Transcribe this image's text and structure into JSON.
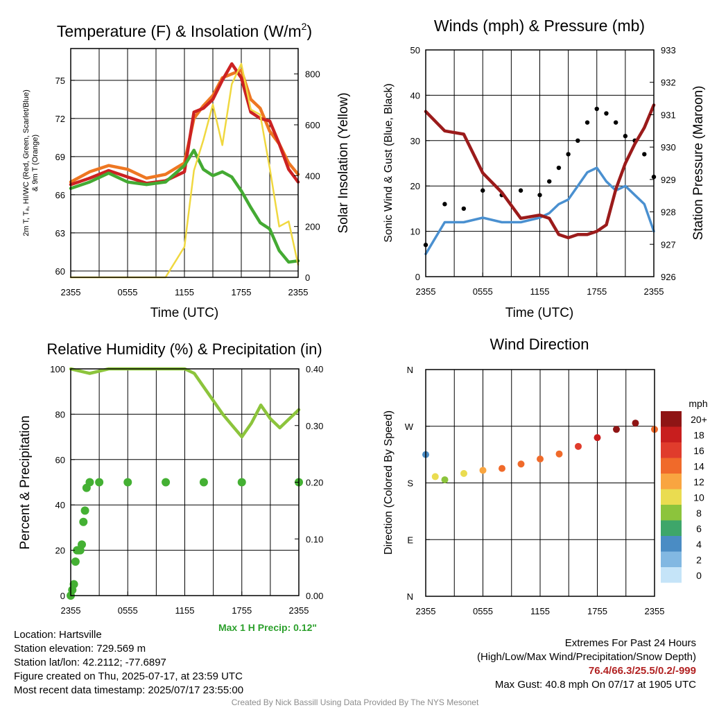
{
  "page": {
    "credit": "Created By Nick Bassill Using Data Provided By The NYS Mesonet"
  },
  "time_ticks": [
    "2355",
    "0555",
    "1155",
    "1755",
    "2355"
  ],
  "chart_data": [
    {
      "id": "temperature",
      "type": "line",
      "title": "Temperature (F) & Insolation (W/m²)",
      "title_main": "Temperature (F) & Insolation (W/m",
      "title_sup": "2",
      "title_close": ")",
      "xlabel": "Time (UTC)",
      "ylabel": "2m T, Tₐ, HI/WC (Red, Green, Scarlet/Blue) & 9m T (Orange)",
      "ylabel_line1": "2m T, Tₐ, HI/WC (Red, Green, Scarlet/Blue)",
      "ylabel_line2": "& 9m T (Orange)",
      "y2label": "Solar Insolation (Yellow)",
      "x": [
        "2355",
        "0155",
        "0355",
        "0555",
        "0755",
        "0955",
        "1155",
        "1255",
        "1355",
        "1455",
        "1555",
        "1655",
        "1755",
        "1855",
        "1955",
        "2055",
        "2155",
        "2255",
        "2355"
      ],
      "ylim": [
        59.5,
        77.5
      ],
      "yticks": [
        60,
        63,
        66,
        69,
        72,
        75
      ],
      "y2lim": [
        0,
        900
      ],
      "y2ticks": [
        0,
        200,
        400,
        600,
        800
      ],
      "grid": true,
      "series": [
        {
          "color": "#ee7722",
          "values": [
            67.0,
            67.8,
            68.3,
            68.0,
            67.3,
            67.6,
            68.5,
            72.0,
            73.0,
            73.8,
            75.2,
            75.5,
            75.8,
            73.5,
            72.8,
            71.0,
            70.0,
            68.5,
            67.6
          ]
        },
        {
          "color": "#cc2222",
          "values": [
            66.8,
            67.3,
            67.9,
            67.4,
            66.9,
            67.1,
            67.8,
            72.5,
            72.8,
            73.5,
            75.0,
            76.3,
            75.2,
            72.5,
            72.0,
            71.8,
            70.0,
            68.0,
            67.0
          ]
        },
        {
          "color": "#44aa33",
          "values": [
            66.5,
            67.0,
            67.7,
            67.0,
            66.8,
            67.0,
            68.3,
            69.5,
            68.0,
            67.5,
            67.8,
            67.4,
            66.3,
            65.0,
            63.8,
            63.3,
            61.6,
            60.7,
            60.8
          ]
        },
        {
          "color": "#f0d840",
          "axis": "right",
          "values": [
            0,
            0,
            0,
            0,
            0,
            0,
            120,
            420,
            540,
            680,
            520,
            760,
            840,
            660,
            640,
            430,
            200,
            220,
            50
          ]
        }
      ]
    },
    {
      "id": "winds",
      "type": "line",
      "title": "Winds (mph) & Pressure (mb)",
      "xlabel": "Time (UTC)",
      "ylabel": "Sonic Wind & Gust (Blue, Black)",
      "y2label": "Station Pressure (Maroon)",
      "x": [
        "2355",
        "0155",
        "0355",
        "0555",
        "0755",
        "0955",
        "1155",
        "1255",
        "1355",
        "1455",
        "1555",
        "1655",
        "1755",
        "1855",
        "1955",
        "2055",
        "2155",
        "2255",
        "2355"
      ],
      "ylim": [
        0,
        50
      ],
      "yticks": [
        0,
        10,
        20,
        30,
        40,
        50
      ],
      "y2lim": [
        926,
        933
      ],
      "y2ticks": [
        926,
        927,
        928,
        929,
        930,
        931,
        932,
        933
      ],
      "grid": true,
      "series": [
        {
          "color": "#4a90d0",
          "values": [
            5,
            12,
            12,
            13,
            12,
            12,
            13,
            14,
            16,
            17,
            20,
            23,
            24,
            21,
            19,
            20,
            18,
            16,
            10
          ]
        },
        {
          "color": "#000000",
          "marker": "dot",
          "values": [
            7,
            16,
            15,
            19,
            18,
            19,
            18,
            21,
            24,
            27,
            30,
            34,
            37,
            36,
            34,
            31,
            30,
            27,
            22
          ]
        },
        {
          "color": "#9b1b1b",
          "axis": "right",
          "values": [
            931.1,
            930.5,
            930.4,
            929.2,
            928.6,
            927.8,
            927.9,
            927.8,
            927.3,
            927.2,
            927.3,
            927.3,
            927.4,
            927.6,
            928.7,
            929.5,
            930.1,
            930.6,
            931.3
          ]
        }
      ]
    },
    {
      "id": "humidity",
      "type": "line",
      "title": "Relative Humidity (%) & Precipitation (in)",
      "xlabel": "",
      "ylabel": "Percent & Precipitation",
      "x": [
        "2355",
        "0155",
        "0355",
        "0555",
        "0755",
        "0955",
        "1155",
        "1255",
        "1355",
        "1455",
        "1555",
        "1655",
        "1755",
        "1855",
        "1955",
        "2055",
        "2155",
        "2255",
        "2355"
      ],
      "ylim": [
        0,
        100
      ],
      "yticks": [
        0,
        20,
        40,
        60,
        80,
        100
      ],
      "y2lim": [
        0,
        0.4
      ],
      "y2ticks": [
        "0.00",
        "0.10",
        "0.20",
        "0.30",
        "0.40"
      ],
      "grid": true,
      "annotation": "Max 1 H Precip: 0.12\"",
      "series": [
        {
          "color": "#8cc43c",
          "values": [
            100,
            98,
            100,
            100,
            100,
            100,
            100,
            98,
            92,
            86,
            80,
            75,
            70,
            76,
            84,
            78,
            74,
            78,
            82
          ]
        }
      ],
      "precip_points": {
        "color": "#44b033",
        "x": [
          "2355",
          "0005",
          "0015",
          "0025",
          "0035",
          "0045",
          "0055",
          "0105",
          "0115",
          "0125",
          "0135",
          "0155",
          "0255",
          "0555",
          "0955",
          "1355",
          "1755",
          "2355"
        ],
        "values": [
          0,
          0.01,
          0.02,
          0.06,
          0.08,
          0.08,
          0.08,
          0.09,
          0.13,
          0.15,
          0.19,
          0.2,
          0.2,
          0.2,
          0.2,
          0.2,
          0.2,
          0.2
        ]
      }
    },
    {
      "id": "direction",
      "type": "scatter",
      "title": "Wind Direction",
      "xlabel": "",
      "ylabel": "Direction (Colored By Speed)",
      "x": [
        "2355",
        "0055",
        "0155",
        "0355",
        "0555",
        "0755",
        "0955",
        "1155",
        "1355",
        "1555",
        "1755",
        "1955",
        "2155",
        "2355"
      ],
      "yticks": [
        "N",
        "E",
        "S",
        "W",
        "N"
      ],
      "ylim": [
        0,
        360
      ],
      "grid": true,
      "series": [
        {
          "values": [
            225,
            190,
            185,
            195,
            200,
            203,
            210,
            218,
            226,
            238,
            252,
            265,
            275,
            265
          ],
          "speeds": [
            4,
            10,
            9,
            11,
            13,
            14,
            14,
            14,
            15,
            16,
            18,
            20,
            20,
            14
          ]
        }
      ],
      "legend": {
        "title": "mph",
        "labels": [
          "20+",
          "18",
          "16",
          "14",
          "12",
          "10",
          "8",
          "6",
          "4",
          "2",
          "0"
        ],
        "colors": [
          "#8f1515",
          "#c81e1e",
          "#e03c2c",
          "#f06a2a",
          "#f9a540",
          "#eadc50",
          "#8cc43c",
          "#3ea66a",
          "#4a8cc4",
          "#82b8e2",
          "#c5e4f8"
        ]
      }
    }
  ],
  "info": {
    "location": "Location: Hartsville",
    "elevation": "Station elevation: 729.569 m",
    "latlon": "Station lat/lon: 42.2112; -77.6897",
    "created": "Figure created on Thu, 2025-07-17, at 23:59 UTC",
    "recent": "Most recent data timestamp: 2025/07/17 23:55:00",
    "extremes_title": "Extremes For Past 24 Hours",
    "extremes_subtitle": "(High/Low/Max Wind/Precipitation/Snow Depth)",
    "extremes_values": "76.4/66.3/25.5/0.2/-999",
    "max_gust": "Max Gust: 40.8 mph On 07/17 at 1905 UTC"
  }
}
